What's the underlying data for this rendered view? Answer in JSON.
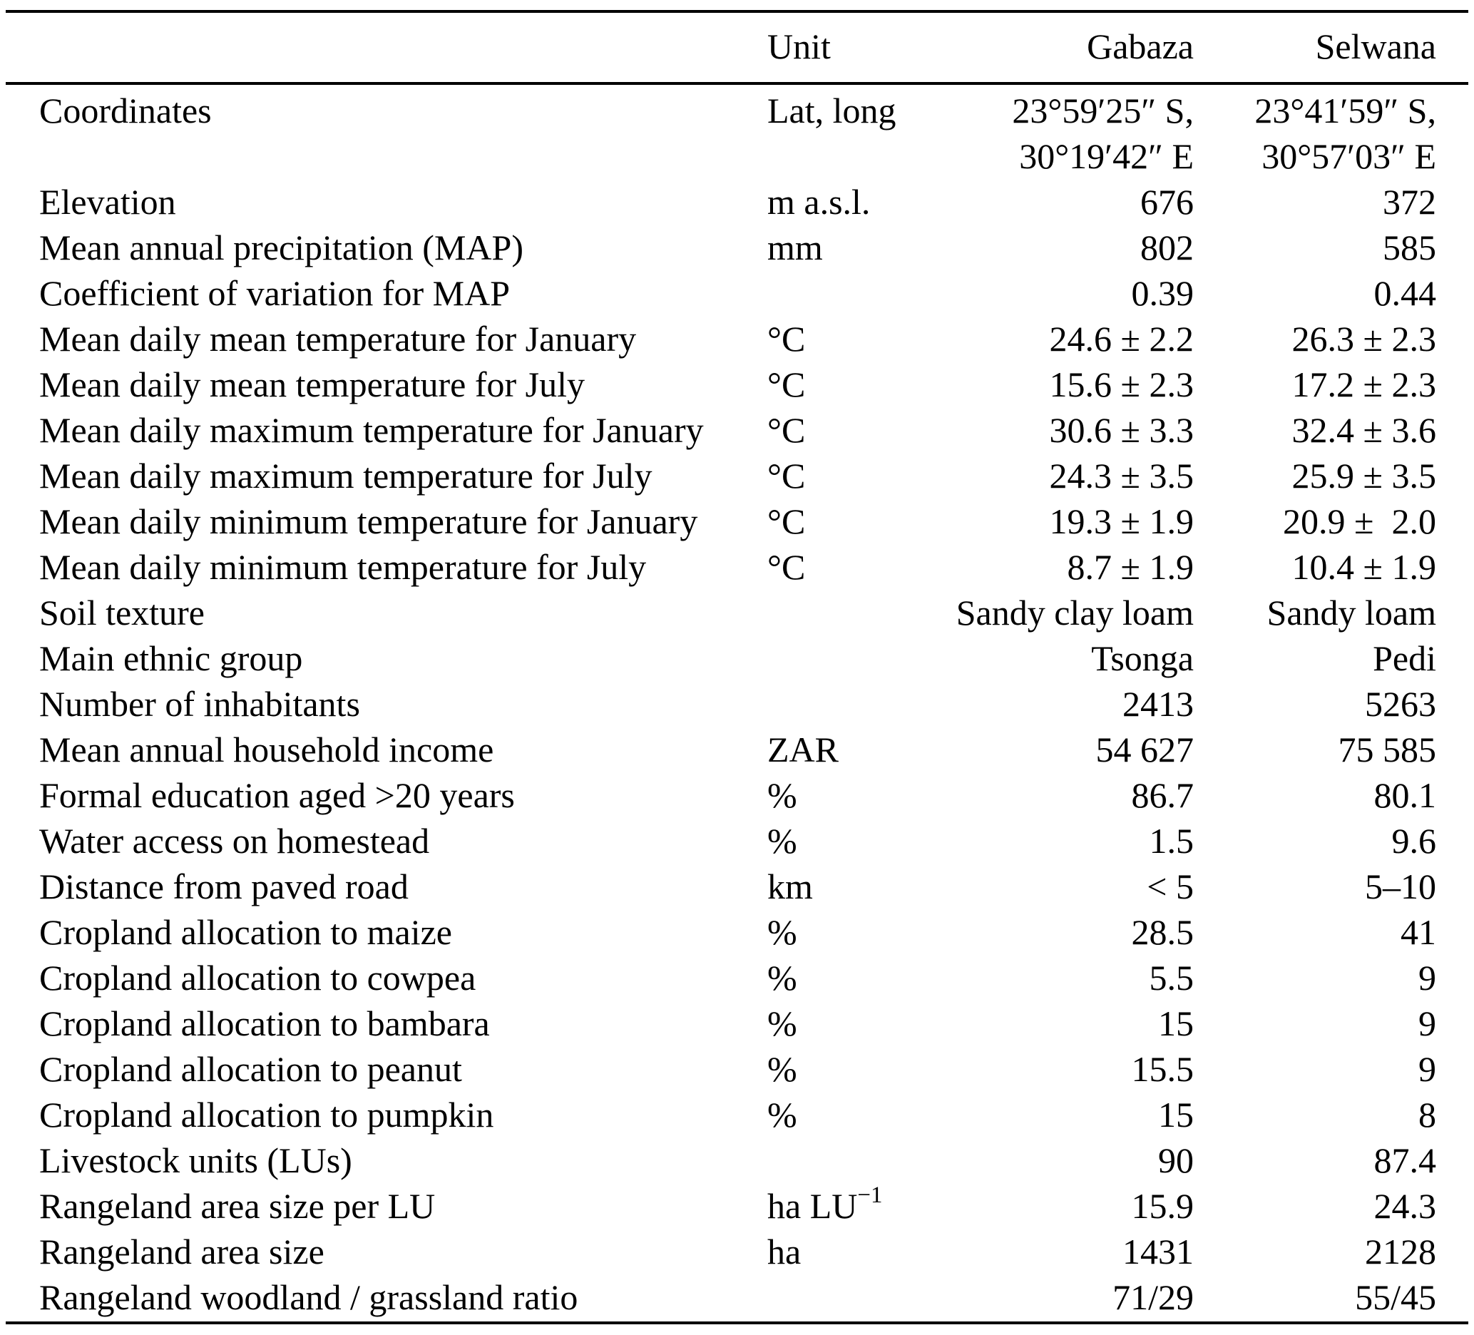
{
  "page": {
    "background_color": "#ffffff",
    "text_color": "#000000",
    "rule_color": "#000000"
  },
  "table": {
    "columns": [
      "",
      "Unit",
      "Gabaza",
      "Selwana"
    ],
    "rows": [
      {
        "label": "Coordinates",
        "unit": "Lat, long",
        "gabaza": "23°59′25″ S,\n30°19′42″ E",
        "selwana": "23°41′59″ S,\n30°57′03″ E"
      },
      {
        "label": "Elevation",
        "unit": "m a.s.l.",
        "gabaza": "676",
        "selwana": "372"
      },
      {
        "label": "Mean annual precipitation (MAP)",
        "unit": "mm",
        "gabaza": "802",
        "selwana": "585"
      },
      {
        "label": "Coefficient of variation for MAP",
        "unit": "",
        "gabaza": "0.39",
        "selwana": "0.44"
      },
      {
        "label": "Mean daily mean temperature for January",
        "unit": "°C",
        "gabaza": "24.6 ± 2.2",
        "selwana": "26.3 ± 2.3"
      },
      {
        "label": "Mean daily mean temperature for July",
        "unit": "°C",
        "gabaza": "15.6 ± 2.3",
        "selwana": "17.2 ± 2.3"
      },
      {
        "label": "Mean daily maximum temperature for January",
        "unit": "°C",
        "gabaza": "30.6 ± 3.3",
        "selwana": "32.4 ± 3.6"
      },
      {
        "label": "Mean daily maximum temperature for July",
        "unit": "°C",
        "gabaza": "24.3 ± 3.5",
        "selwana": "25.9 ± 3.5"
      },
      {
        "label": "Mean daily minimum temperature for January",
        "unit": "°C",
        "gabaza": "19.3 ± 1.9",
        "selwana": "20.9 ±  2.0"
      },
      {
        "label": "Mean daily minimum temperature for July",
        "unit": "°C",
        "gabaza": "8.7 ± 1.9",
        "selwana": "10.4 ± 1.9"
      },
      {
        "label": "Soil texture",
        "unit": "",
        "gabaza": "Sandy clay loam",
        "selwana": "Sandy loam"
      },
      {
        "label": "Main ethnic group",
        "unit": "",
        "gabaza": "Tsonga",
        "selwana": "Pedi"
      },
      {
        "label": "Number of inhabitants",
        "unit": "",
        "gabaza": "2413",
        "selwana": "5263"
      },
      {
        "label": "Mean annual household income",
        "unit": "ZAR",
        "gabaza": "54 627",
        "selwana": "75 585"
      },
      {
        "label": "Formal education aged >20 years",
        "unit": "%",
        "gabaza": "86.7",
        "selwana": "80.1"
      },
      {
        "label": "Water access on homestead",
        "unit": "%",
        "gabaza": "1.5",
        "selwana": "9.6"
      },
      {
        "label": "Distance from paved road",
        "unit": "km",
        "gabaza": "< 5",
        "selwana": "5–10"
      },
      {
        "label": "Cropland allocation to maize",
        "unit": "%",
        "gabaza": "28.5",
        "selwana": "41"
      },
      {
        "label": "Cropland allocation to cowpea",
        "unit": "%",
        "gabaza": "5.5",
        "selwana": "9"
      },
      {
        "label": "Cropland allocation to bambara",
        "unit": "%",
        "gabaza": "15",
        "selwana": "9"
      },
      {
        "label": "Cropland allocation to peanut",
        "unit": "%",
        "gabaza": "15.5",
        "selwana": "9"
      },
      {
        "label": "Cropland allocation to pumpkin",
        "unit": "%",
        "gabaza": "15",
        "selwana": "8"
      },
      {
        "label": "Livestock units (LUs)",
        "unit": "",
        "gabaza": "90",
        "selwana": "87.4"
      },
      {
        "label": "Rangeland area size per LU",
        "unit": "ha LU^{−1}",
        "gabaza": "15.9",
        "selwana": "24.3"
      },
      {
        "label": "Rangeland area size",
        "unit": "ha",
        "gabaza": "1431",
        "selwana": "2128"
      },
      {
        "label": "Rangeland woodland / grassland ratio",
        "unit": "",
        "gabaza": "71/29",
        "selwana": "55/45"
      }
    ]
  }
}
